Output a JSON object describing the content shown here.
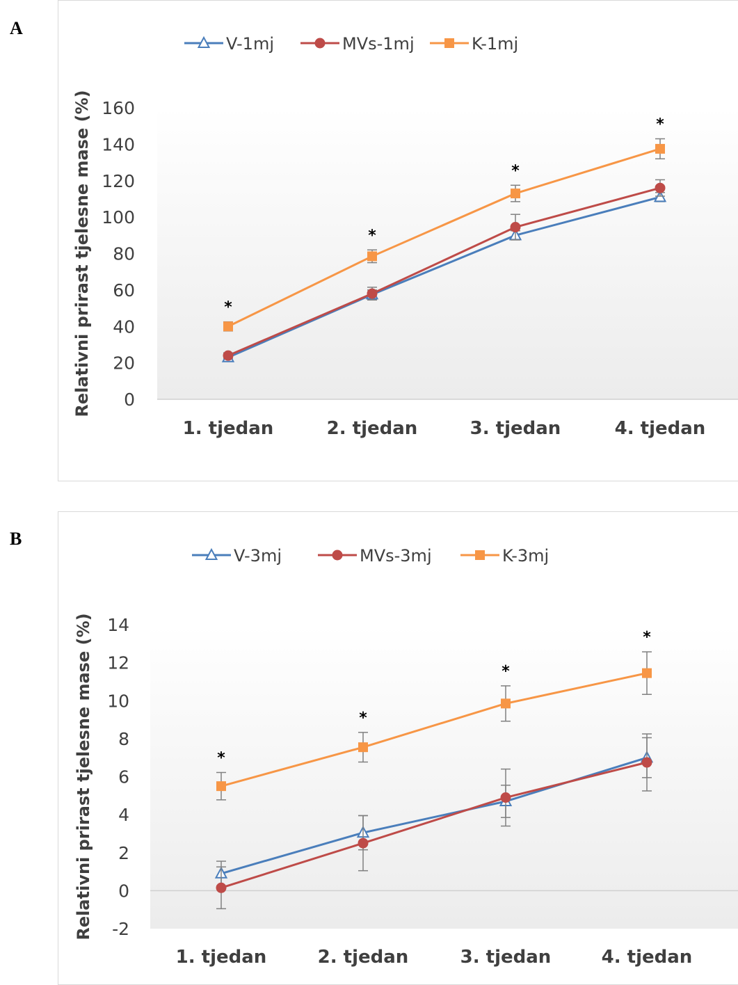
{
  "panels": [
    {
      "label": "A",
      "ylabel": "Relativni prirast tjelesne mase (%)"
    },
    {
      "label": "B",
      "ylabel": "Relativni prirast tjelesne mase  (%)"
    }
  ],
  "chart_data": [
    {
      "type": "line",
      "title": "",
      "xlabel": "",
      "ylabel": "Relativni prirast tjelesne mase (%)",
      "categories": [
        "1. tjedan",
        "2. tjedan",
        "3. tjedan",
        "4. tjedan"
      ],
      "ylim": [
        0,
        160
      ],
      "yticks": [
        0,
        20,
        40,
        60,
        80,
        100,
        120,
        140,
        160
      ],
      "grid": false,
      "legend": "top",
      "series": [
        {
          "name": "V-1mj",
          "color": "#4a7ebb",
          "marker": "triangle-open",
          "values": [
            23,
            57.5,
            90,
            111
          ],
          "errors": [
            1.5,
            2.5,
            2.5,
            2.5
          ]
        },
        {
          "name": "MVs-1mj",
          "color": "#be4b48",
          "marker": "circle",
          "values": [
            24,
            58,
            94.5,
            116
          ],
          "errors": [
            1.5,
            3.5,
            7,
            4.5
          ]
        },
        {
          "name": "K-1mj",
          "color": "#f79646",
          "marker": "square",
          "values": [
            40,
            78.5,
            113,
            137.5
          ],
          "errors": [
            2.5,
            3.5,
            4.5,
            5.5
          ]
        }
      ],
      "significance": [
        "*",
        "*",
        "*",
        "*"
      ]
    },
    {
      "type": "line",
      "title": "",
      "xlabel": "",
      "ylabel": "Relativni prirast tjelesne mase  (%)",
      "categories": [
        "1. tjedan",
        "2. tjedan",
        "3. tjedan",
        "4. tjedan"
      ],
      "ylim": [
        -2,
        14
      ],
      "yticks": [
        -2,
        0,
        2,
        4,
        6,
        8,
        10,
        12,
        14
      ],
      "grid": false,
      "legend": "top",
      "series": [
        {
          "name": "V-3mj",
          "color": "#4a7ebb",
          "marker": "triangle-open",
          "values": [
            0.9,
            3.05,
            4.7,
            7.0
          ],
          "errors": [
            0.65,
            0.9,
            0.85,
            1.05
          ]
        },
        {
          "name": "MVs-3mj",
          "color": "#be4b48",
          "marker": "circle",
          "values": [
            0.15,
            2.5,
            4.9,
            6.75
          ],
          "errors": [
            1.1,
            1.45,
            1.5,
            1.5
          ]
        },
        {
          "name": "K-3mj",
          "color": "#f79646",
          "marker": "square",
          "values": [
            5.5,
            7.55,
            9.85,
            11.45
          ],
          "errors": [
            0.72,
            0.78,
            0.93,
            1.12
          ]
        }
      ],
      "significance": [
        "*",
        "*",
        "*",
        "*"
      ]
    }
  ]
}
